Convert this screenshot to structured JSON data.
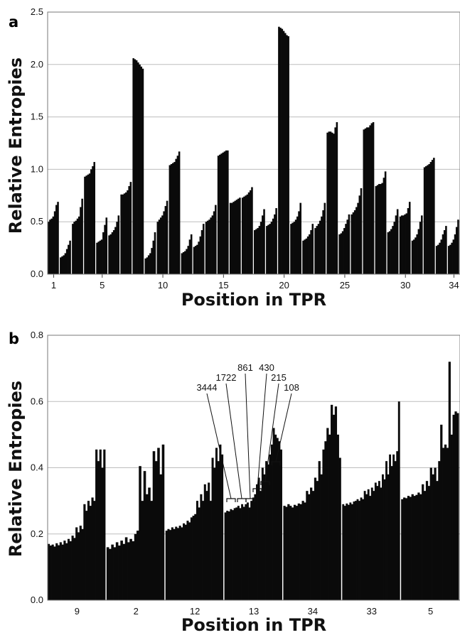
{
  "chart_data": [
    {
      "panel": "a",
      "type": "bar",
      "xlabel": "Position in TPR",
      "ylabel": "Relative Entropies",
      "ylim": [
        0,
        2.5
      ],
      "yticks": [
        "0.0",
        "0.5",
        "1.0",
        "1.5",
        "2.0",
        "2.5"
      ],
      "xticks": [
        "1",
        "5",
        "10",
        "15",
        "20",
        "25",
        "30",
        "34"
      ],
      "grid": true,
      "positions": [
        {
          "pos": 1,
          "values": [
            0.5,
            0.52,
            0.53,
            0.55,
            0.6,
            0.66,
            0.69
          ]
        },
        {
          "pos": 2,
          "values": [
            0.16,
            0.17,
            0.18,
            0.2,
            0.24,
            0.28,
            0.32
          ]
        },
        {
          "pos": 3,
          "values": [
            0.48,
            0.5,
            0.51,
            0.53,
            0.55,
            0.64,
            0.72
          ]
        },
        {
          "pos": 4,
          "values": [
            0.93,
            0.94,
            0.95,
            0.96,
            1.0,
            1.03,
            1.07
          ]
        },
        {
          "pos": 5,
          "values": [
            0.3,
            0.31,
            0.32,
            0.33,
            0.4,
            0.47,
            0.54
          ]
        },
        {
          "pos": 6,
          "values": [
            0.37,
            0.38,
            0.4,
            0.42,
            0.45,
            0.5,
            0.56
          ]
        },
        {
          "pos": 7,
          "values": [
            0.76,
            0.76,
            0.77,
            0.78,
            0.8,
            0.84,
            0.88
          ]
        },
        {
          "pos": 8,
          "values": [
            2.06,
            2.05,
            2.04,
            2.02,
            2.0,
            1.98,
            1.96
          ]
        },
        {
          "pos": 9,
          "values": [
            0.15,
            0.16,
            0.18,
            0.2,
            0.25,
            0.32,
            0.4
          ]
        },
        {
          "pos": 10,
          "values": [
            0.5,
            0.52,
            0.54,
            0.56,
            0.6,
            0.65,
            0.7
          ]
        },
        {
          "pos": 11,
          "values": [
            1.04,
            1.05,
            1.06,
            1.07,
            1.1,
            1.13,
            1.17
          ]
        },
        {
          "pos": 12,
          "values": [
            0.2,
            0.21,
            0.22,
            0.24,
            0.27,
            0.33,
            0.38
          ]
        },
        {
          "pos": 13,
          "values": [
            0.26,
            0.27,
            0.28,
            0.31,
            0.36,
            0.42,
            0.48
          ]
        },
        {
          "pos": 14,
          "values": [
            0.5,
            0.51,
            0.52,
            0.54,
            0.56,
            0.6,
            0.66
          ]
        },
        {
          "pos": 15,
          "values": [
            1.13,
            1.14,
            1.15,
            1.16,
            1.17,
            1.18,
            1.18
          ]
        },
        {
          "pos": 16,
          "values": [
            0.68,
            0.68,
            0.69,
            0.7,
            0.71,
            0.72,
            0.73
          ]
        },
        {
          "pos": 17,
          "values": [
            0.73,
            0.74,
            0.75,
            0.76,
            0.78,
            0.8,
            0.83
          ]
        },
        {
          "pos": 18,
          "values": [
            0.42,
            0.43,
            0.44,
            0.46,
            0.5,
            0.56,
            0.62
          ]
        },
        {
          "pos": 19,
          "values": [
            0.46,
            0.47,
            0.48,
            0.5,
            0.53,
            0.57,
            0.63
          ]
        },
        {
          "pos": 20,
          "values": [
            2.36,
            2.35,
            2.34,
            2.32,
            2.3,
            2.28,
            2.27
          ]
        },
        {
          "pos": 21,
          "values": [
            0.48,
            0.49,
            0.5,
            0.52,
            0.55,
            0.6,
            0.68
          ]
        },
        {
          "pos": 22,
          "values": [
            0.32,
            0.33,
            0.34,
            0.36,
            0.38,
            0.42,
            0.48
          ]
        },
        {
          "pos": 23,
          "values": [
            0.44,
            0.46,
            0.48,
            0.51,
            0.55,
            0.61,
            0.68
          ]
        },
        {
          "pos": 24,
          "values": [
            1.35,
            1.36,
            1.36,
            1.35,
            1.34,
            1.4,
            1.45
          ]
        },
        {
          "pos": 25,
          "values": [
            0.38,
            0.39,
            0.41,
            0.44,
            0.48,
            0.52,
            0.57
          ]
        },
        {
          "pos": 26,
          "values": [
            0.57,
            0.59,
            0.61,
            0.64,
            0.68,
            0.75,
            0.82
          ]
        },
        {
          "pos": 27,
          "values": [
            1.38,
            1.39,
            1.4,
            1.4,
            1.42,
            1.44,
            1.45
          ]
        },
        {
          "pos": 28,
          "values": [
            0.84,
            0.85,
            0.86,
            0.86,
            0.87,
            0.92,
            0.98
          ]
        },
        {
          "pos": 29,
          "values": [
            0.4,
            0.41,
            0.43,
            0.46,
            0.5,
            0.56,
            0.62
          ]
        },
        {
          "pos": 30,
          "values": [
            0.55,
            0.56,
            0.56,
            0.57,
            0.58,
            0.63,
            0.69
          ]
        },
        {
          "pos": 31,
          "values": [
            0.32,
            0.33,
            0.35,
            0.38,
            0.43,
            0.5,
            0.56
          ]
        },
        {
          "pos": 32,
          "values": [
            1.02,
            1.03,
            1.04,
            1.05,
            1.07,
            1.09,
            1.11
          ]
        },
        {
          "pos": 33,
          "values": [
            0.27,
            0.28,
            0.3,
            0.33,
            0.38,
            0.42,
            0.46
          ]
        },
        {
          "pos": 34,
          "values": [
            0.27,
            0.28,
            0.3,
            0.33,
            0.38,
            0.45,
            0.52
          ]
        }
      ]
    },
    {
      "panel": "b",
      "type": "bar",
      "xlabel": "Position in TPR",
      "ylabel": "Relative Entropies",
      "ylim": [
        0,
        0.8
      ],
      "yticks": [
        "0.0",
        "0.2",
        "0.4",
        "0.6",
        "0.8"
      ],
      "grid": true,
      "groups": [
        {
          "label": "9",
          "start": 0.158,
          "values": [
            0.17,
            0.165,
            0.168,
            0.162,
            0.172,
            0.166,
            0.175,
            0.168,
            0.18,
            0.172,
            0.185,
            0.178,
            0.195,
            0.188,
            0.22,
            0.205,
            0.225,
            0.215,
            0.29,
            0.27,
            0.3,
            0.285,
            0.31,
            0.3,
            0.455,
            0.42,
            0.455,
            0.4,
            0.455
          ]
        },
        {
          "label": "2",
          "start": 0.15,
          "values": [
            0.16,
            0.155,
            0.168,
            0.16,
            0.175,
            0.165,
            0.18,
            0.17,
            0.19,
            0.175,
            0.185,
            0.178,
            0.2,
            0.21,
            0.405,
            0.3,
            0.39,
            0.32,
            0.34,
            0.3,
            0.45,
            0.42,
            0.46,
            0.38,
            0.47
          ]
        },
        {
          "label": "12",
          "start": 0.205,
          "values": [
            0.21,
            0.215,
            0.212,
            0.22,
            0.215,
            0.222,
            0.218,
            0.225,
            0.22,
            0.232,
            0.228,
            0.24,
            0.235,
            0.25,
            0.255,
            0.26,
            0.3,
            0.28,
            0.32,
            0.3,
            0.35,
            0.33,
            0.355,
            0.3,
            0.43,
            0.4,
            0.46,
            0.42,
            0.47,
            0.44
          ]
        },
        {
          "label": "13",
          "start": 0.26,
          "values": [
            0.265,
            0.27,
            0.268,
            0.275,
            0.272,
            0.278,
            0.28,
            0.285,
            0.278,
            0.29,
            0.282,
            0.29,
            0.295,
            0.28,
            0.3,
            0.31,
            0.32,
            0.35,
            0.37,
            0.33,
            0.4,
            0.38,
            0.42,
            0.41,
            0.44,
            0.47,
            0.52,
            0.5,
            0.49,
            0.48,
            0.455
          ]
        },
        {
          "label": "34",
          "start": 0.28,
          "values": [
            0.285,
            0.282,
            0.29,
            0.285,
            0.28,
            0.288,
            0.285,
            0.292,
            0.29,
            0.3,
            0.295,
            0.33,
            0.32,
            0.34,
            0.33,
            0.37,
            0.36,
            0.42,
            0.38,
            0.455,
            0.48,
            0.52,
            0.5,
            0.59,
            0.56,
            0.585,
            0.5,
            0.43
          ]
        },
        {
          "label": "33",
          "start": 0.282,
          "values": [
            0.29,
            0.285,
            0.292,
            0.288,
            0.295,
            0.29,
            0.298,
            0.3,
            0.305,
            0.3,
            0.31,
            0.305,
            0.33,
            0.32,
            0.335,
            0.315,
            0.34,
            0.33,
            0.355,
            0.345,
            0.36,
            0.34,
            0.38,
            0.365,
            0.42,
            0.38,
            0.44,
            0.405,
            0.44,
            0.42,
            0.45,
            0.6
          ]
        },
        {
          "label": "5",
          "start": 0.3,
          "values": [
            0.305,
            0.31,
            0.308,
            0.315,
            0.312,
            0.32,
            0.315,
            0.318,
            0.325,
            0.32,
            0.35,
            0.33,
            0.36,
            0.345,
            0.4,
            0.38,
            0.4,
            0.36,
            0.42,
            0.53,
            0.46,
            0.47,
            0.46,
            0.72,
            0.5,
            0.56,
            0.57,
            0.565
          ]
        }
      ],
      "annotations": [
        "3444",
        "1722",
        "861",
        "430",
        "215",
        "108"
      ]
    }
  ]
}
